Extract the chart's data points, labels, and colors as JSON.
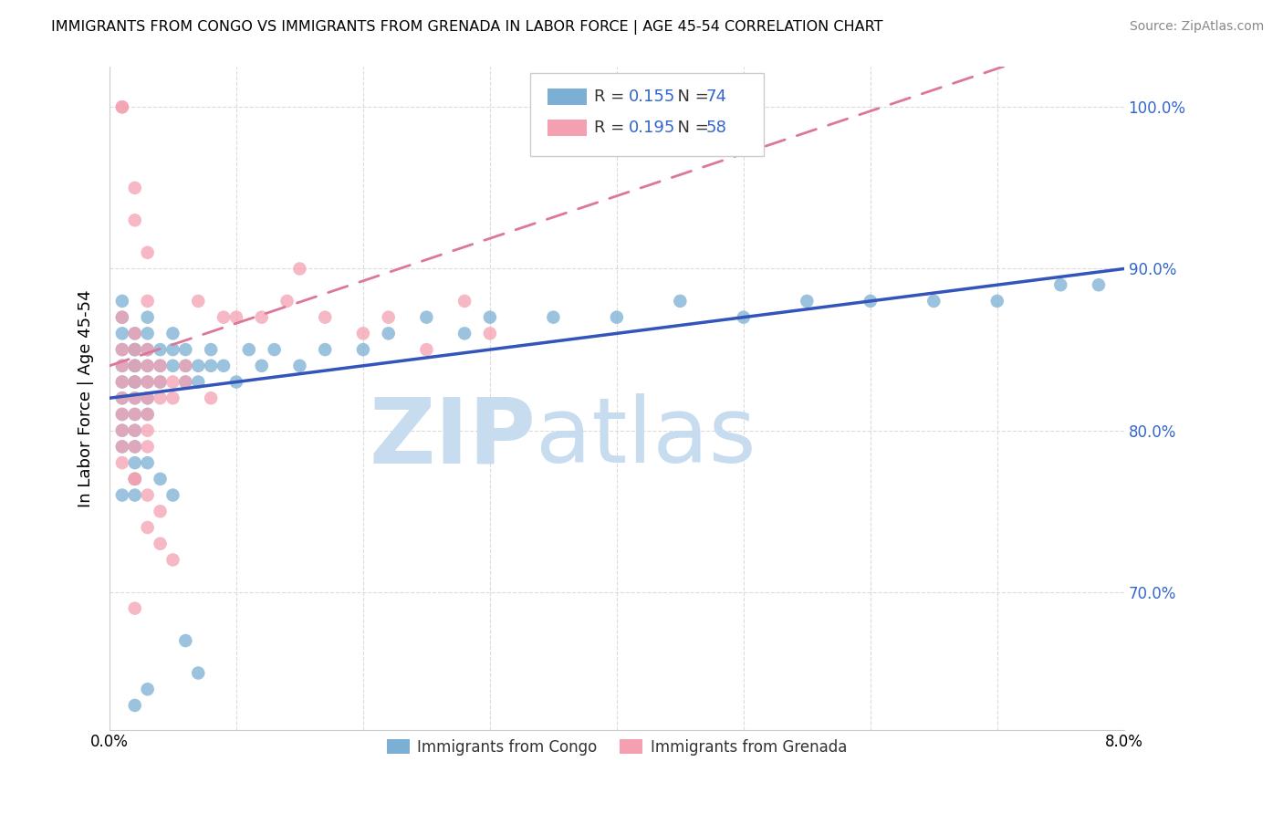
{
  "title": "IMMIGRANTS FROM CONGO VS IMMIGRANTS FROM GRENADA IN LABOR FORCE | AGE 45-54 CORRELATION CHART",
  "source": "Source: ZipAtlas.com",
  "ylabel_label": "In Labor Force | Age 45-54",
  "ytick_labels": [
    "70.0%",
    "80.0%",
    "90.0%",
    "100.0%"
  ],
  "ytick_values": [
    0.7,
    0.8,
    0.9,
    1.0
  ],
  "xlim": [
    0.0,
    0.08
  ],
  "ylim": [
    0.615,
    1.025
  ],
  "congo_color": "#7BAFD4",
  "grenada_color": "#F4A0B0",
  "congo_line_color": "#3355BB",
  "grenada_line_color": "#DD7799",
  "congo_R": 0.155,
  "congo_N": 74,
  "grenada_R": 0.195,
  "grenada_N": 58,
  "congo_scatter_x": [
    0.001,
    0.001,
    0.001,
    0.001,
    0.001,
    0.001,
    0.001,
    0.001,
    0.001,
    0.001,
    0.002,
    0.002,
    0.002,
    0.002,
    0.002,
    0.002,
    0.002,
    0.002,
    0.002,
    0.002,
    0.002,
    0.002,
    0.003,
    0.003,
    0.003,
    0.003,
    0.003,
    0.003,
    0.003,
    0.004,
    0.004,
    0.004,
    0.005,
    0.005,
    0.005,
    0.006,
    0.006,
    0.006,
    0.007,
    0.007,
    0.008,
    0.008,
    0.009,
    0.01,
    0.011,
    0.012,
    0.013,
    0.015,
    0.017,
    0.02,
    0.022,
    0.025,
    0.028,
    0.03,
    0.035,
    0.04,
    0.045,
    0.05,
    0.055,
    0.06,
    0.065,
    0.07,
    0.075,
    0.078,
    0.001,
    0.002,
    0.002,
    0.003,
    0.004,
    0.005,
    0.006,
    0.007,
    0.002,
    0.003
  ],
  "congo_scatter_y": [
    0.84,
    0.86,
    0.87,
    0.83,
    0.82,
    0.81,
    0.8,
    0.85,
    0.79,
    0.88,
    0.85,
    0.84,
    0.83,
    0.86,
    0.82,
    0.81,
    0.8,
    0.79,
    0.78,
    0.85,
    0.84,
    0.83,
    0.87,
    0.86,
    0.85,
    0.84,
    0.83,
    0.82,
    0.81,
    0.85,
    0.84,
    0.83,
    0.86,
    0.85,
    0.84,
    0.85,
    0.84,
    0.83,
    0.84,
    0.83,
    0.85,
    0.84,
    0.84,
    0.83,
    0.85,
    0.84,
    0.85,
    0.84,
    0.85,
    0.85,
    0.86,
    0.87,
    0.86,
    0.87,
    0.87,
    0.87,
    0.88,
    0.87,
    0.88,
    0.88,
    0.88,
    0.88,
    0.89,
    0.89,
    0.76,
    0.77,
    0.76,
    0.78,
    0.77,
    0.76,
    0.67,
    0.65,
    0.63,
    0.64
  ],
  "grenada_scatter_x": [
    0.001,
    0.001,
    0.001,
    0.001,
    0.001,
    0.001,
    0.001,
    0.001,
    0.001,
    0.002,
    0.002,
    0.002,
    0.002,
    0.002,
    0.002,
    0.002,
    0.002,
    0.002,
    0.003,
    0.003,
    0.003,
    0.003,
    0.003,
    0.003,
    0.003,
    0.004,
    0.004,
    0.004,
    0.005,
    0.005,
    0.006,
    0.006,
    0.007,
    0.008,
    0.009,
    0.01,
    0.012,
    0.014,
    0.015,
    0.017,
    0.02,
    0.022,
    0.025,
    0.028,
    0.03,
    0.001,
    0.001,
    0.002,
    0.002,
    0.003,
    0.003,
    0.002,
    0.003,
    0.004,
    0.003,
    0.004,
    0.005,
    0.002
  ],
  "grenada_scatter_y": [
    0.84,
    0.83,
    0.82,
    0.81,
    0.8,
    0.87,
    0.85,
    0.79,
    0.78,
    0.85,
    0.84,
    0.83,
    0.82,
    0.81,
    0.8,
    0.86,
    0.77,
    0.79,
    0.85,
    0.84,
    0.83,
    0.82,
    0.81,
    0.8,
    0.79,
    0.84,
    0.83,
    0.82,
    0.83,
    0.82,
    0.84,
    0.83,
    0.88,
    0.82,
    0.87,
    0.87,
    0.87,
    0.88,
    0.9,
    0.87,
    0.86,
    0.87,
    0.85,
    0.88,
    0.86,
    1.0,
    1.0,
    0.95,
    0.93,
    0.91,
    0.88,
    0.77,
    0.76,
    0.75,
    0.74,
    0.73,
    0.72,
    0.69
  ]
}
